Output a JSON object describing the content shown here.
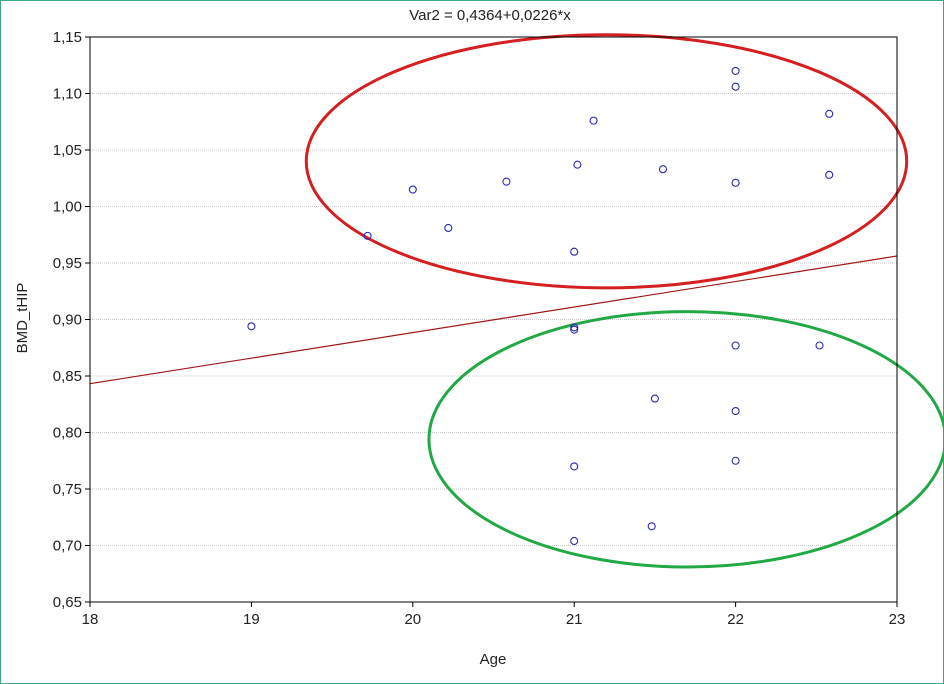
{
  "chart_data": {
    "type": "scatter",
    "title": "Var2 = 0,4364+0,0226*x",
    "xlabel": "Age",
    "ylabel": "BMD_tHIP",
    "xlim": [
      18,
      23
    ],
    "ylim": [
      0.65,
      1.15
    ],
    "x_ticks": [
      "18",
      "19",
      "20",
      "21",
      "22",
      "23"
    ],
    "y_ticks": [
      "0,65",
      "0,70",
      "0,75",
      "0,80",
      "0,85",
      "0,90",
      "0,95",
      "1,00",
      "1,05",
      "1,10",
      "1,15"
    ],
    "grid": "horizontal",
    "series": [
      {
        "points": [
          [
            19.0,
            0.894
          ],
          [
            19.72,
            0.974
          ],
          [
            20.0,
            1.015
          ],
          [
            20.22,
            0.981
          ],
          [
            20.58,
            1.022
          ],
          [
            21.0,
            0.96
          ],
          [
            21.02,
            1.037
          ],
          [
            21.12,
            1.076
          ],
          [
            21.55,
            1.033
          ],
          [
            22.0,
            1.12
          ],
          [
            22.0,
            1.106
          ],
          [
            22.0,
            1.021
          ],
          [
            22.58,
            1.082
          ],
          [
            22.58,
            1.028
          ],
          [
            21.0,
            0.891
          ],
          [
            21.0,
            0.893
          ],
          [
            21.0,
            0.77
          ],
          [
            21.0,
            0.704
          ],
          [
            21.5,
            0.83
          ],
          [
            21.48,
            0.717
          ],
          [
            22.0,
            0.877
          ],
          [
            22.0,
            0.819
          ],
          [
            22.0,
            0.775
          ],
          [
            22.52,
            0.877
          ]
        ],
        "color": "#2b2bb5"
      }
    ],
    "regression": {
      "intercept": 0.4364,
      "slope": 0.0226,
      "color": "#a01818"
    },
    "annotations": [
      {
        "shape": "ellipse",
        "color": "#d42020",
        "cx": 21.2,
        "cy": 1.04,
        "rx_units": 1.86,
        "ry_units": 0.112
      },
      {
        "shape": "ellipse",
        "color": "#22a844",
        "cx": 21.7,
        "cy": 0.794,
        "rx_units": 1.6,
        "ry_units": 0.113
      }
    ]
  }
}
